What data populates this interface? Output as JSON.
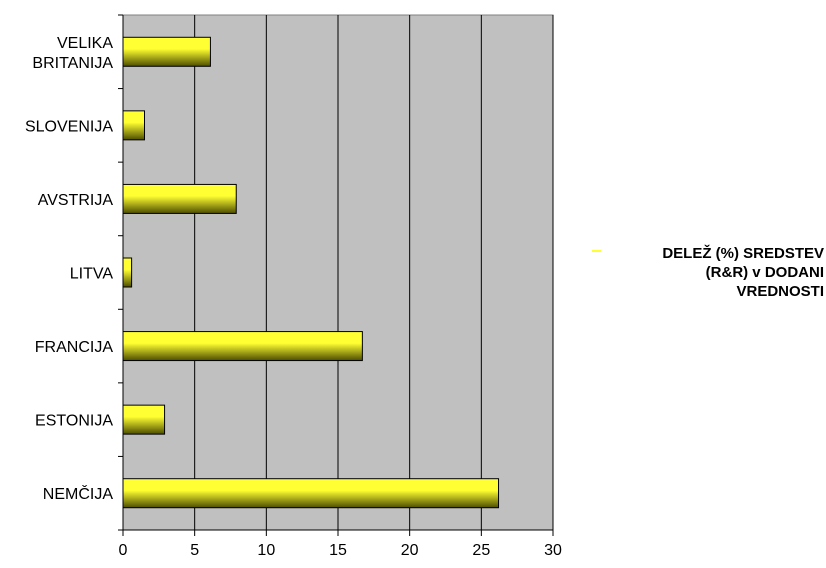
{
  "chart_data": {
    "type": "bar",
    "orientation": "horizontal",
    "categories": [
      "VELIKA\nBRITANIJA",
      "SLOVENIJA",
      "AVSTRIJA",
      "LITVA",
      "FRANCIJA",
      "ESTONIJA",
      "NEMČIJA"
    ],
    "series": [
      {
        "name": "DELEŽ (%) SREDSTEV\n(R&R) v DODANI\nVREDNOSTI",
        "values": [
          6.1,
          1.5,
          7.9,
          0.6,
          16.7,
          2.9,
          26.2
        ]
      }
    ],
    "xlim": [
      0,
      30
    ],
    "xticks": [
      "0",
      "5",
      "10",
      "15",
      "20",
      "25",
      "30"
    ],
    "grid": "vertical",
    "legend": "right",
    "colors": {
      "plot_background": "#c0c0c0",
      "bar_light": "#ffff33",
      "bar_dark": "#4d4d00",
      "grid": "#000000",
      "legend_swatch": "#ffff33"
    }
  }
}
